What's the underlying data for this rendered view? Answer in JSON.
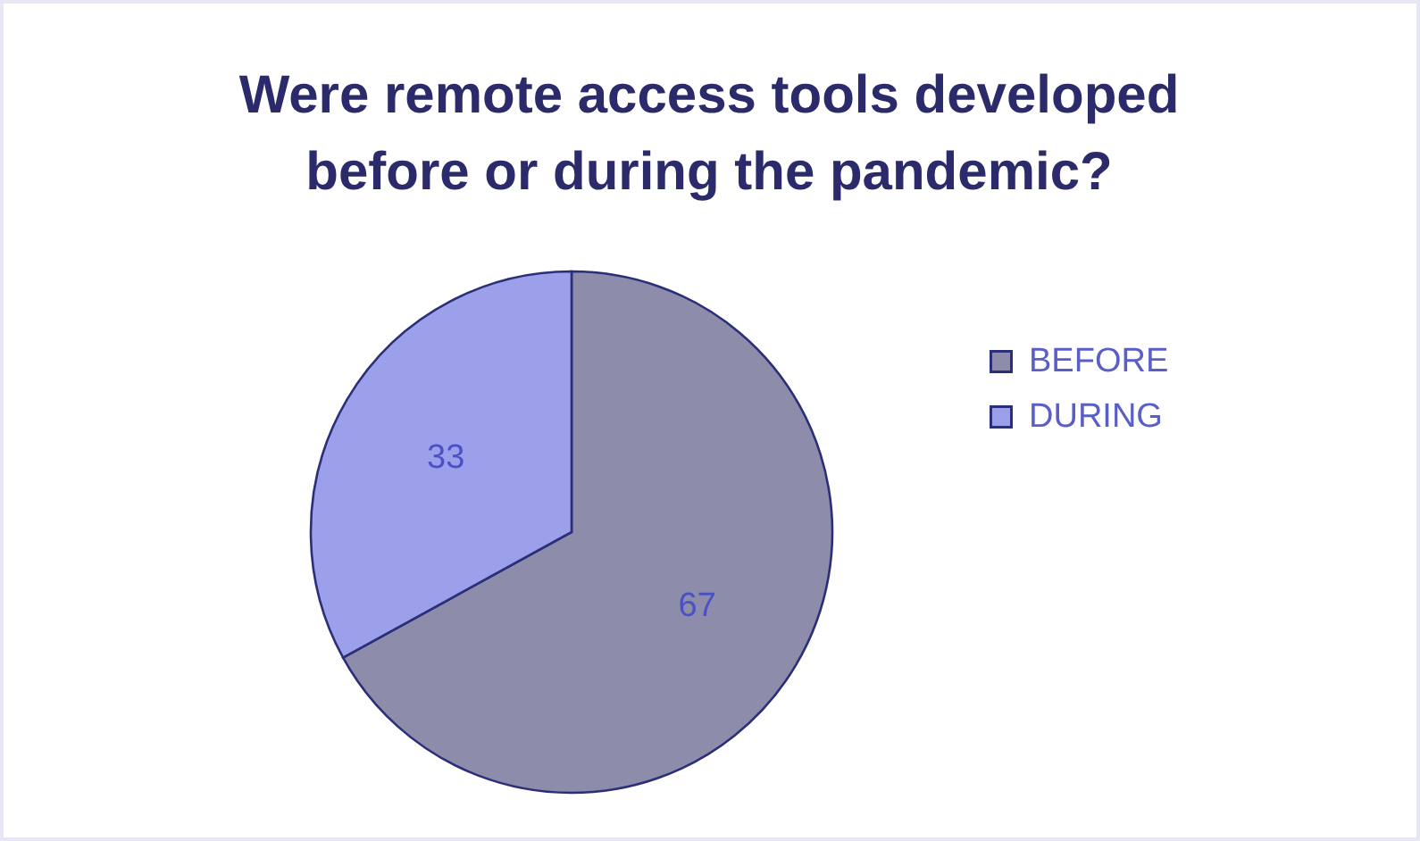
{
  "chart_data": {
    "type": "pie",
    "title": "Were remote access tools developed before or during the pandemic?",
    "categories": [
      "BEFORE",
      "DURING"
    ],
    "values": [
      67,
      33
    ],
    "colors": [
      "#8d8dab",
      "#9ca0ea"
    ],
    "data_labels": true,
    "legend": "right"
  }
}
